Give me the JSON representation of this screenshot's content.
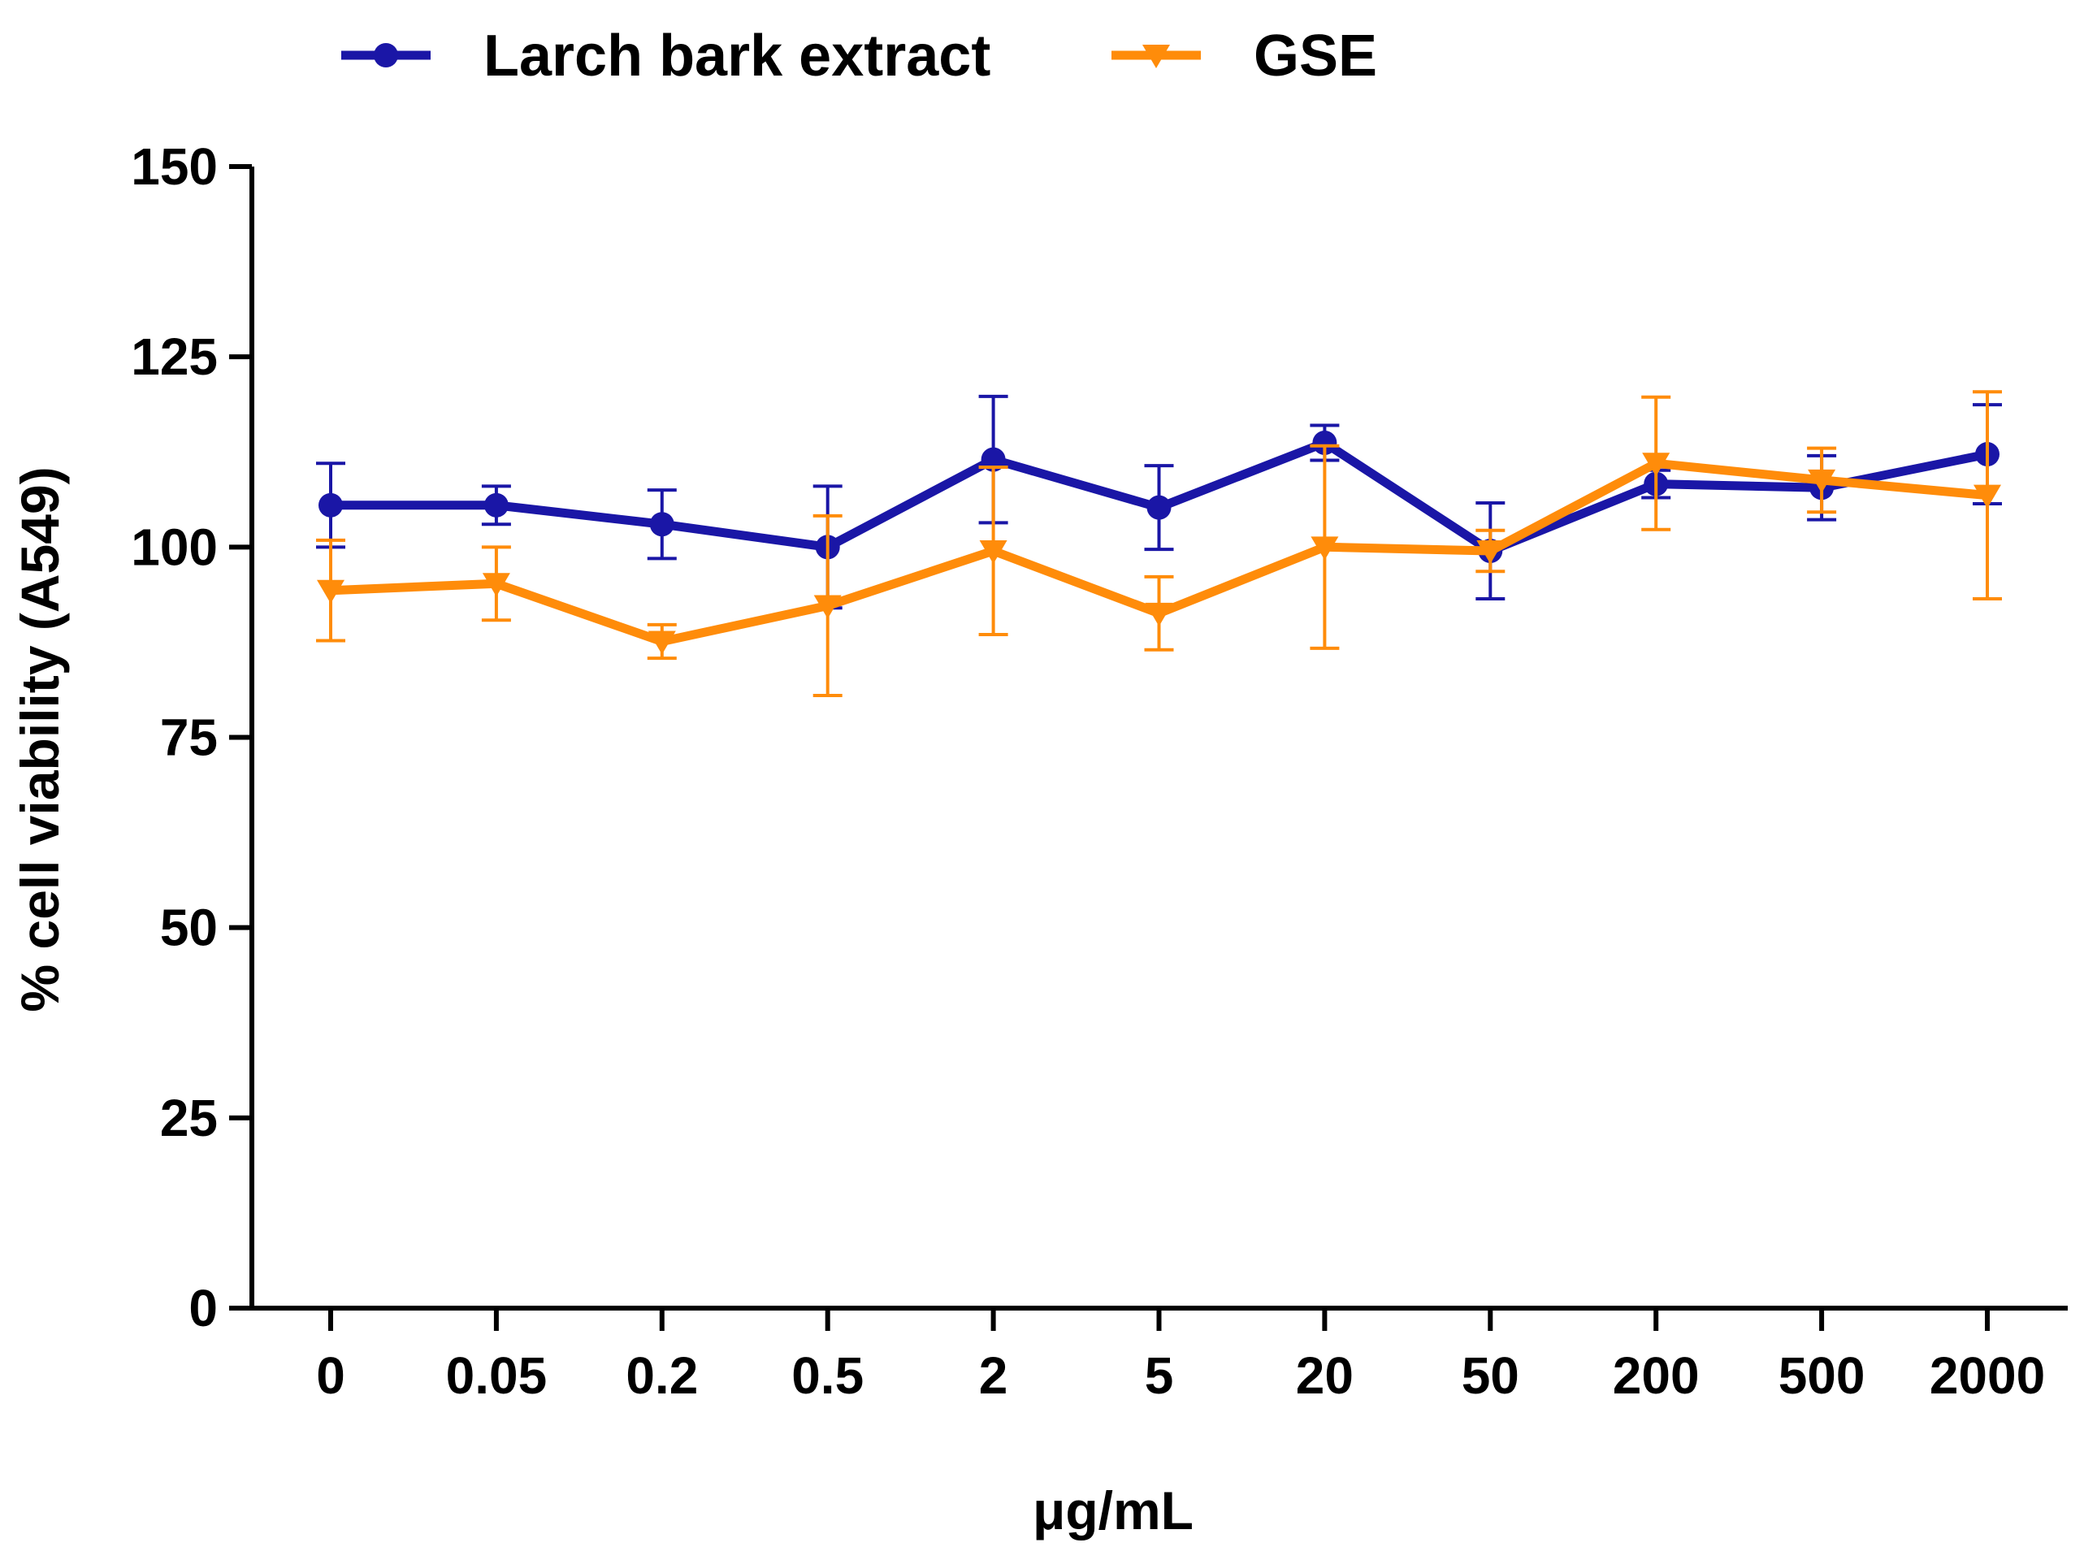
{
  "chart_data": {
    "type": "line",
    "categories": [
      "0",
      "0.05",
      "0.2",
      "0.5",
      "2",
      "5",
      "20",
      "50",
      "200",
      "500",
      "2000"
    ],
    "xlabel": "μg/mL",
    "ylabel": "% cell viability (A549)",
    "ylim": [
      0,
      150
    ],
    "yticks": [
      0,
      25,
      50,
      75,
      100,
      125,
      150
    ],
    "grid": false,
    "legend_position": "top-left",
    "series": [
      {
        "name": "Larch bark extract",
        "color": "#1a16a6",
        "marker": "circle",
        "values": [
          105.5,
          105.5,
          103,
          100,
          111.5,
          105.2,
          113.7,
          99.5,
          108.3,
          107.8,
          112.2
        ],
        "errors": [
          5.5,
          2.5,
          4.5,
          8,
          8.3,
          5.5,
          2.3,
          6.3,
          1.8,
          4.2,
          6.5
        ]
      },
      {
        "name": "GSE",
        "color": "#ff8c0a",
        "marker": "triangle-down",
        "values": [
          94.3,
          95.2,
          87.6,
          92.3,
          99.5,
          91.3,
          100,
          99.5,
          111,
          108.8,
          106.8
        ],
        "errors": [
          6.6,
          4.8,
          2.2,
          11.8,
          11,
          4.8,
          13.3,
          2.7,
          8.7,
          4.2,
          13.6
        ]
      }
    ]
  }
}
